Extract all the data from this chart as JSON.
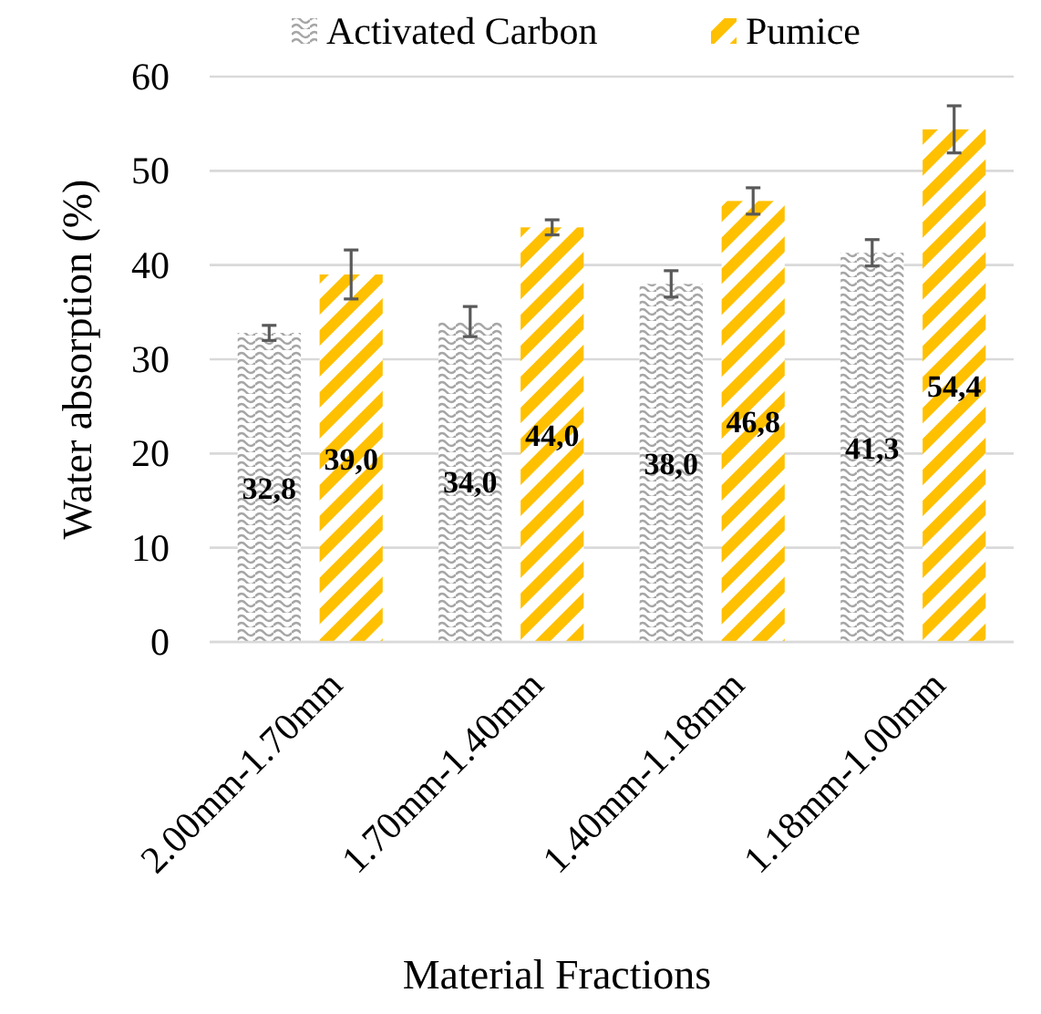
{
  "chart_data": {
    "type": "bar",
    "xlabel": "Material Fractions",
    "ylabel": "Water absorption (%)",
    "categories": [
      "2.00mm-1.70mm",
      "1.70mm-1.40mm",
      "1.40mm-1.18mm",
      "1.18mm-1.00mm"
    ],
    "series": [
      {
        "name": "Activated Carbon",
        "color": "#a6a6a6",
        "values": [
          32.8,
          34.0,
          38.0,
          41.3
        ],
        "errors": [
          0.8,
          1.6,
          1.4,
          1.4
        ],
        "value_labels": [
          "32,8",
          "34,0",
          "38,0",
          "41,3"
        ]
      },
      {
        "name": "Pumice",
        "color": "#ffc000",
        "values": [
          39.0,
          44.0,
          46.8,
          54.4
        ],
        "errors": [
          2.6,
          0.8,
          1.4,
          2.5
        ],
        "value_labels": [
          "39,0",
          "44,0",
          "46,8",
          "54,4"
        ]
      }
    ],
    "ylim": [
      0,
      60
    ],
    "yticks": [
      0,
      10,
      20,
      30,
      40,
      50,
      60
    ],
    "grid": "y",
    "legend": "top"
  }
}
